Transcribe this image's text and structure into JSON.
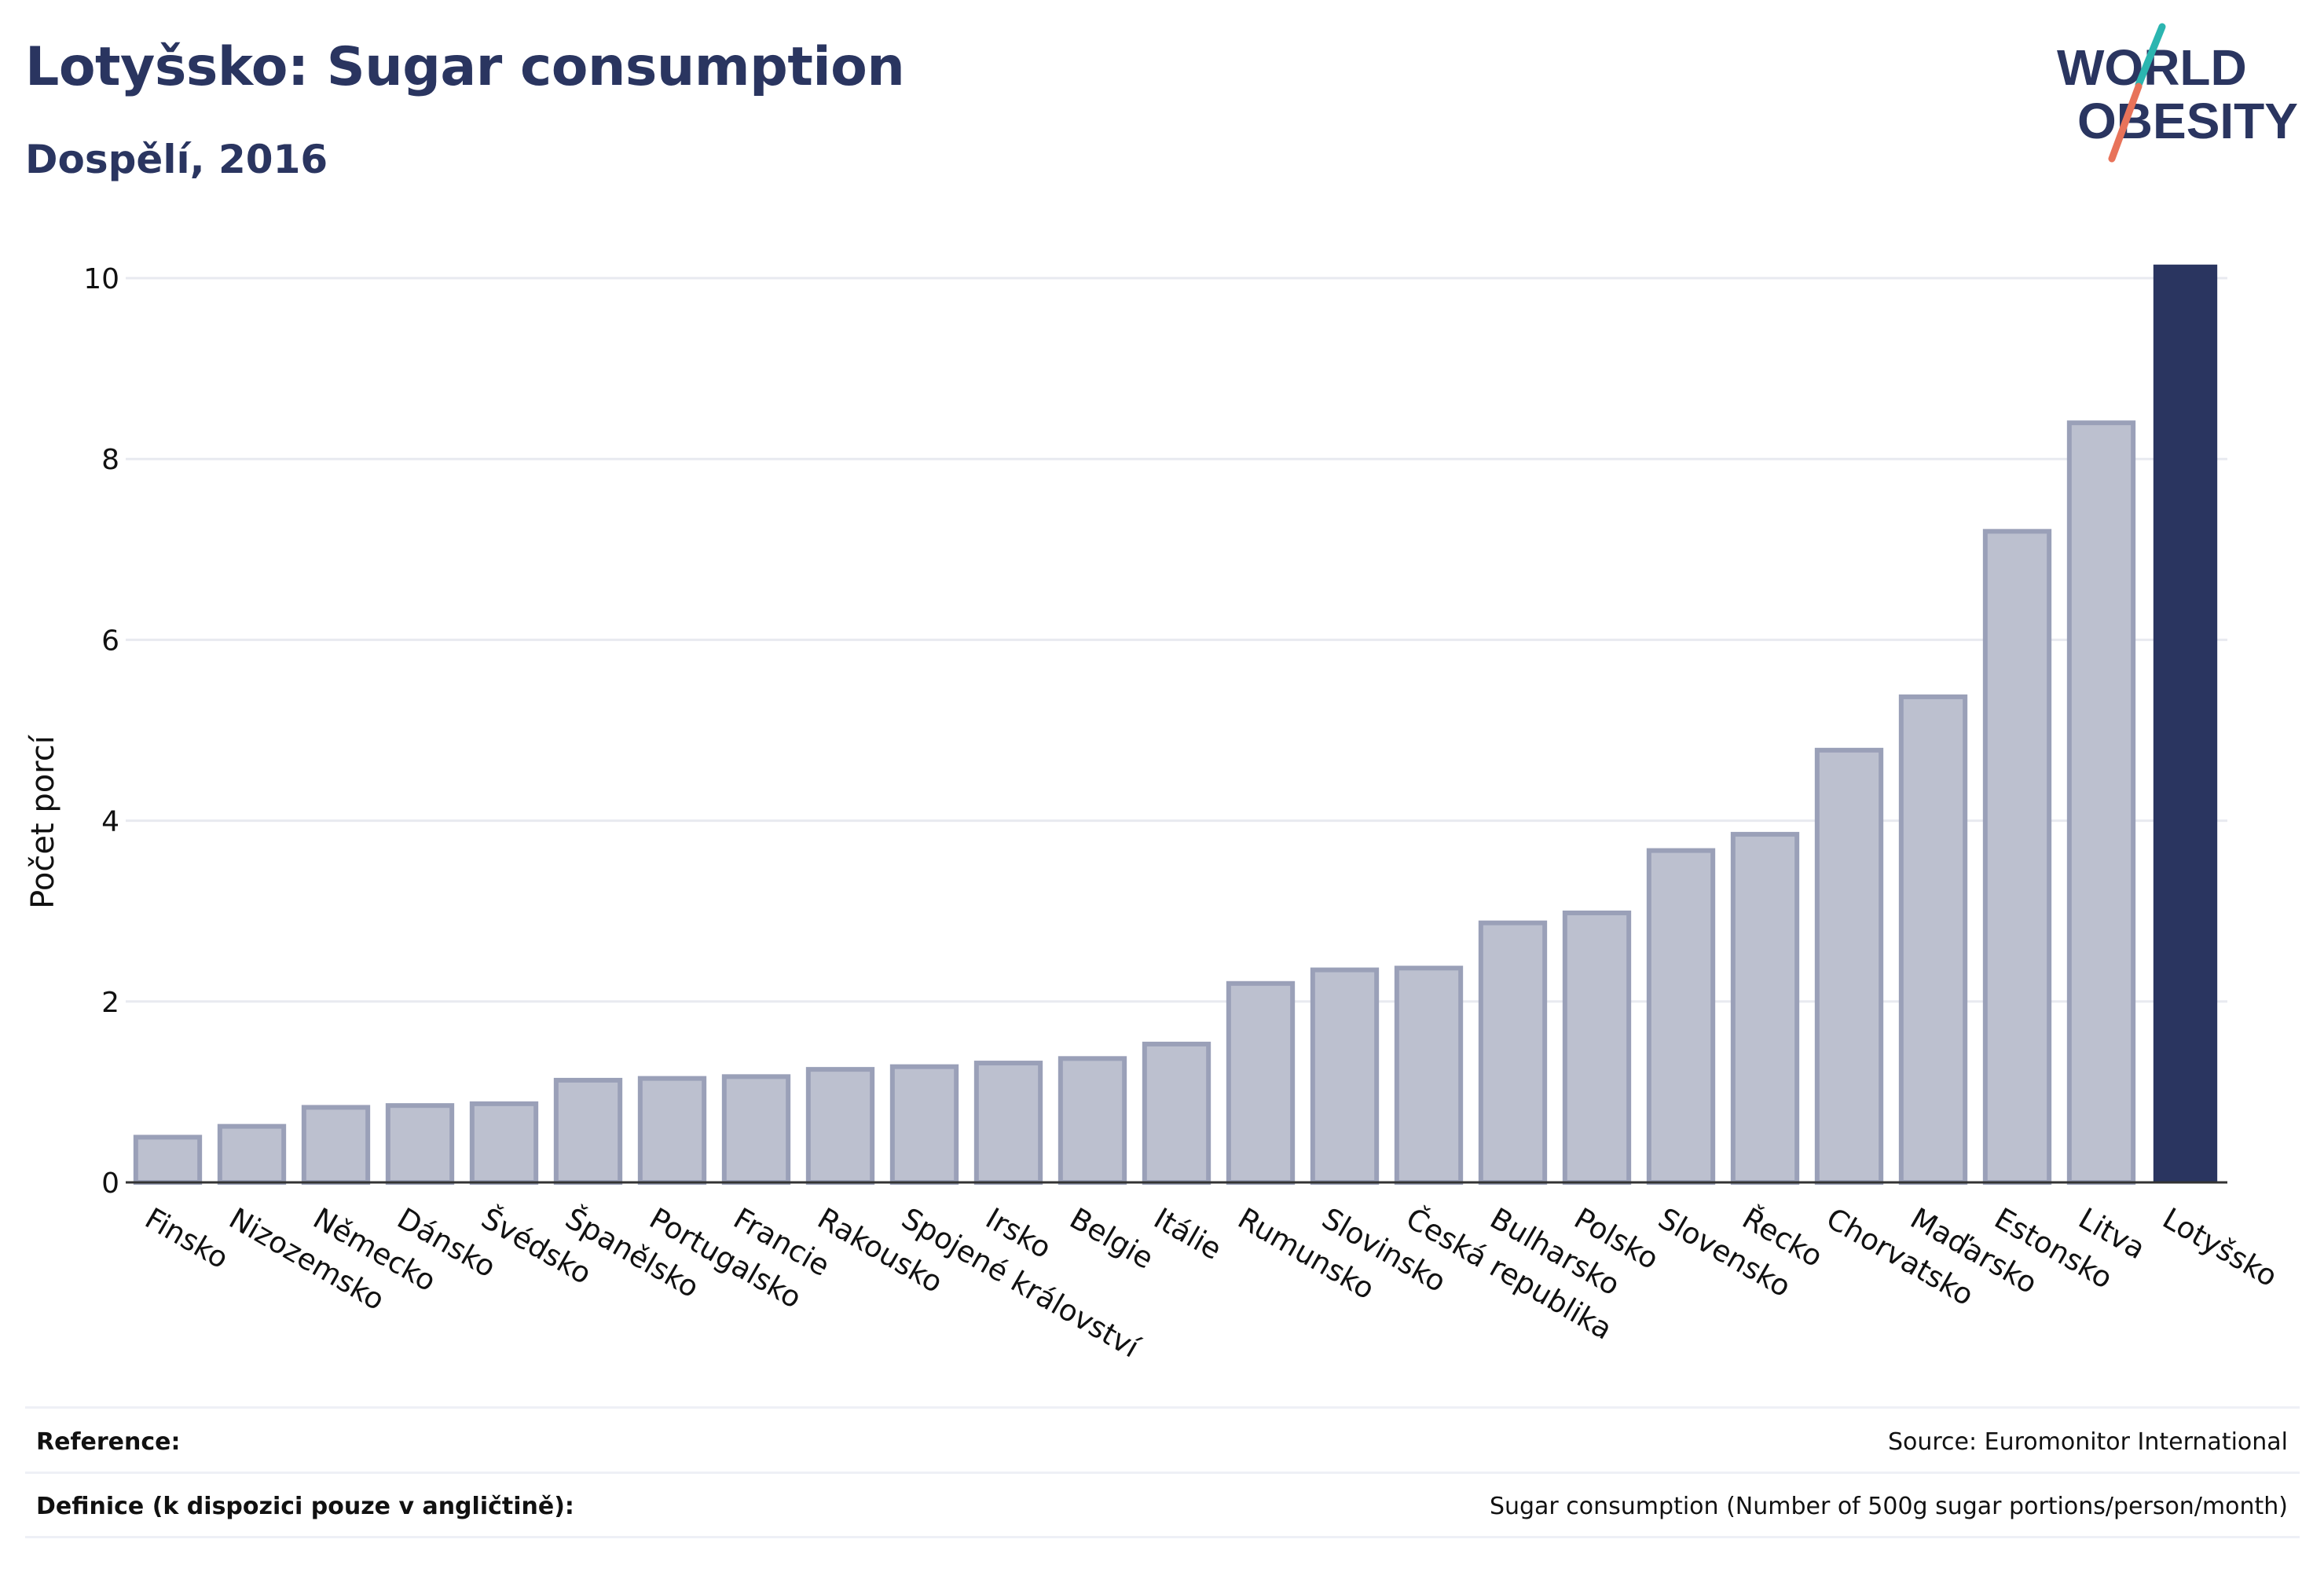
{
  "header": {
    "title": "Lotyšsko: Sugar consumption",
    "subtitle": "Dospělí, 2016"
  },
  "logo": {
    "line1": "WORLD",
    "line2": "OBESITY",
    "colors": {
      "text": "#2a3560",
      "slash_teal": "#2bb5b0",
      "slash_coral": "#e8735a"
    }
  },
  "chart_data": {
    "type": "bar",
    "ylabel": "Počet porcí",
    "xlabel": "",
    "ylim": [
      0,
      10.4
    ],
    "yticks": [
      0,
      2,
      4,
      6,
      8,
      10
    ],
    "grid": true,
    "categories": [
      "Finsko",
      "Nizozemsko",
      "Německo",
      "Dánsko",
      "Švédsko",
      "Španělsko",
      "Portugalsko",
      "Francie",
      "Rakousko",
      "Spojené království",
      "Irsko",
      "Belgie",
      "Itálie",
      "Rumunsko",
      "Slovinsko",
      "Česká republika",
      "Bulharsko",
      "Polsko",
      "Slovensko",
      "Řecko",
      "Chorvatsko",
      "Maďarsko",
      "Estonsko",
      "Litva",
      "Lotyšsko"
    ],
    "values": [
      0.5,
      0.62,
      0.83,
      0.85,
      0.87,
      1.13,
      1.15,
      1.17,
      1.25,
      1.28,
      1.32,
      1.37,
      1.53,
      2.2,
      2.35,
      2.37,
      2.87,
      2.98,
      3.67,
      3.85,
      4.78,
      5.37,
      7.2,
      8.4,
      10.15
    ],
    "highlight": "Lotyšsko",
    "colors": {
      "bar": "#bcc0cf",
      "bar_edge": "#9aa0b8",
      "highlight": "#2a3560",
      "grid": "#e8eaf0",
      "axis": "#333333"
    }
  },
  "footer": {
    "reference_label": "Reference:",
    "reference_value": "Source: Euromonitor International",
    "definition_label": "Definice (k dispozici pouze v angličtině):",
    "definition_value": "Sugar consumption (Number of 500g sugar portions/person/month)"
  }
}
